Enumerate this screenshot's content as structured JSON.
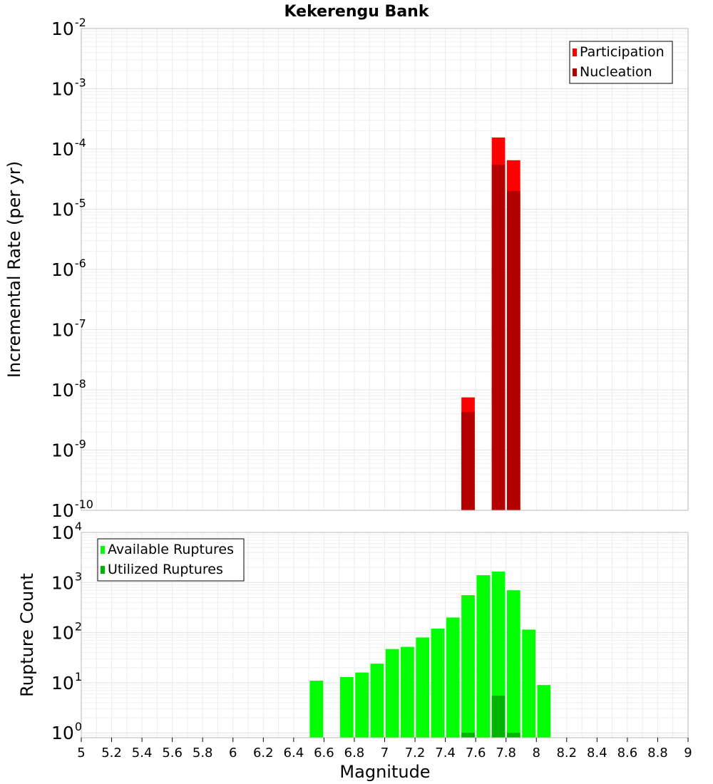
{
  "chart_data": {
    "title": "Kekerengu Bank",
    "xlabel": "Magnitude",
    "xlim": [
      5,
      9
    ],
    "xticks": [
      "5",
      "5.2",
      "5.4",
      "5.6",
      "5.8",
      "6",
      "6.2",
      "6.4",
      "6.6",
      "6.8",
      "7",
      "7.2",
      "7.4",
      "7.6",
      "7.8",
      "8",
      "8.2",
      "8.4",
      "8.6",
      "8.8",
      "9"
    ],
    "bin_width": 0.1,
    "charts": [
      {
        "type": "bar",
        "ylabel": "Incremental Rate (per yr)",
        "yscale": "log",
        "ylim": [
          1e-10,
          0.01
        ],
        "ytick_exponents": [
          "-10",
          "-9",
          "-8",
          "-7",
          "-6",
          "-5",
          "-4",
          "-3",
          "-2"
        ],
        "grid": true,
        "legend_position": "top-right",
        "series": [
          {
            "name": "Participation",
            "color": "#ff0000",
            "x": [
              7.55,
              7.75,
              7.85
            ],
            "values": [
              7.5e-09,
              0.000155,
              6.5e-05
            ]
          },
          {
            "name": "Nucleation",
            "color": "#b30000",
            "x": [
              7.55,
              7.75,
              7.85
            ],
            "values": [
              4.3e-09,
              5.5e-05,
              2e-05
            ]
          }
        ]
      },
      {
        "type": "bar",
        "ylabel": "Rupture Count",
        "yscale": "log",
        "ylim": [
          0.8,
          10000.0
        ],
        "ytick_exponents": [
          "0",
          "1",
          "2",
          "3",
          "4"
        ],
        "grid": true,
        "legend_position": "top-left",
        "series": [
          {
            "name": "Available Ruptures",
            "color": "#00ff00",
            "x": [
              6.55,
              6.75,
              6.85,
              6.95,
              7.05,
              7.15,
              7.25,
              7.35,
              7.45,
              7.55,
              7.65,
              7.75,
              7.85,
              7.95,
              8.05
            ],
            "values": [
              11,
              13,
              16,
              24,
              47,
              52,
              80,
              120,
              200,
              560,
              1400,
              1650,
              700,
              115,
              9
            ]
          },
          {
            "name": "Utilized Ruptures",
            "color": "#00b300",
            "x": [
              7.55,
              7.75,
              7.85
            ],
            "values": [
              1,
              5.5,
              1
            ]
          }
        ]
      }
    ]
  }
}
